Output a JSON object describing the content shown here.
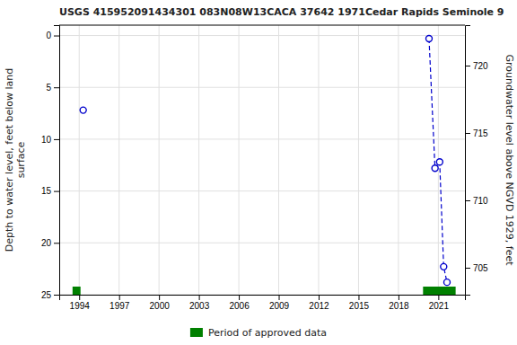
{
  "chart_data": {
    "type": "scatter",
    "title": "USGS 415952091434301 083N08W13CACA 37642 1971Cedar Rapids Seminole 9",
    "ylabel": "Depth to water level, feet below land\n surface",
    "y2label": "Groundwater level above NGVD 1929, feet",
    "series": [
      {
        "type": "scatter",
        "marker": "circle",
        "color": "#0000cc",
        "x": [
          1994.3,
          2020.3,
          2020.75,
          2021.1,
          2021.4,
          2021.65
        ],
        "values": [
          7.2,
          0.3,
          12.8,
          12.2,
          22.3,
          23.8
        ]
      },
      {
        "type": "line",
        "line_style": "dashed",
        "color": "#0000cc",
        "x": [
          2020.3,
          2020.75,
          2021.1,
          2021.4,
          2021.65
        ],
        "values": [
          0.3,
          12.8,
          12.2,
          22.3,
          23.8
        ]
      },
      {
        "type": "span",
        "name": "Period of approved data",
        "color": "#008000",
        "start": [
          1993.5,
          2019.85
        ],
        "end": [
          1994.1,
          2022.3
        ]
      }
    ],
    "xlim": [
      1992.5,
      2023.0
    ],
    "xticks": [
      1994,
      1997,
      2000,
      2003,
      2006,
      2009,
      2012,
      2015,
      2018,
      2021
    ],
    "ylim": [
      25,
      -1
    ],
    "yticks": [
      0,
      5,
      10,
      15,
      20,
      25
    ],
    "y2lim": [
      703,
      723
    ],
    "y2ticks": [
      705,
      710,
      715,
      720
    ],
    "grid": true,
    "legend": "bottom"
  }
}
